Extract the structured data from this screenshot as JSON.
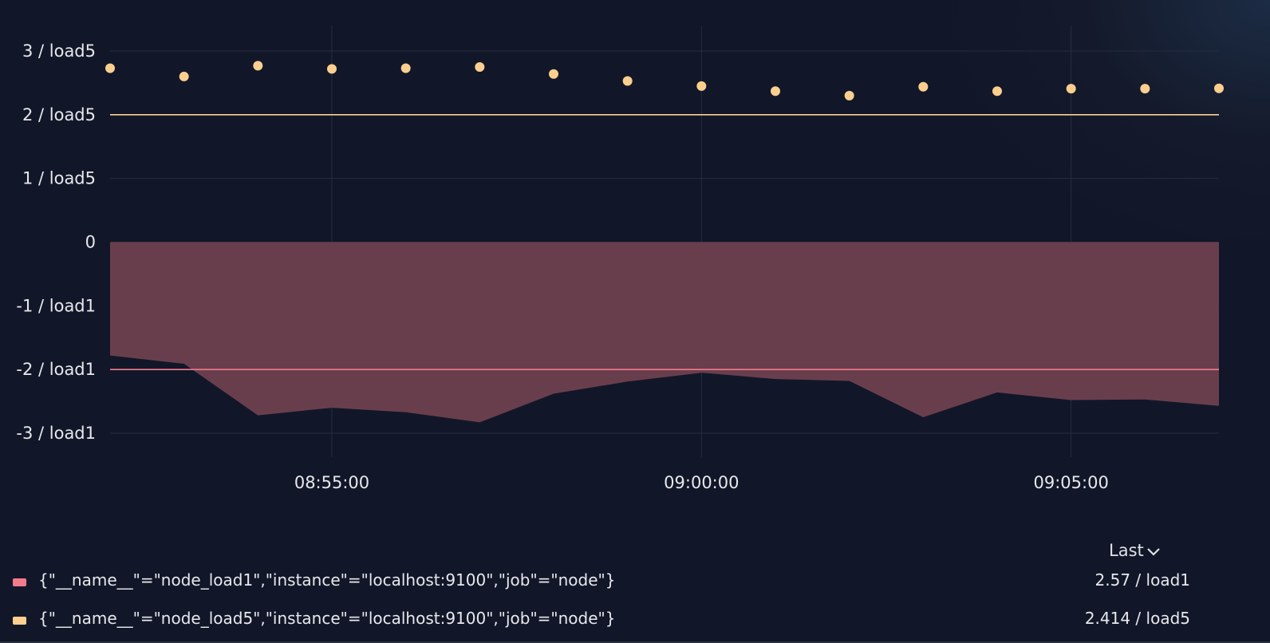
{
  "chart_data": {
    "type": "line",
    "title": "",
    "xlabel": "",
    "ylabel": "",
    "x_tick_labels": [
      "08:55:00",
      "09:00:00",
      "09:05:00"
    ],
    "y_tick_labels": [
      "3 / load5",
      "2 / load5",
      "1 / load5",
      "0",
      "-1 / load1",
      "-2 / load1",
      "-3 / load1"
    ],
    "ylim": [
      -3,
      3
    ],
    "grid": true,
    "legend_position": "bottom",
    "series": [
      {
        "name": "{\"__name__\"=\"node_load1\",\"instance\"=\"localhost:9100\",\"job\"=\"node\"}",
        "style": "area-negative",
        "color": "#f27a8c",
        "fill_color": "#6b3f4e",
        "threshold": 2,
        "x": [
          "08:52:00",
          "08:53:00",
          "08:54:00",
          "08:55:00",
          "08:56:00",
          "08:57:00",
          "08:58:00",
          "08:59:00",
          "09:00:00",
          "09:01:00",
          "09:02:00",
          "09:03:00",
          "09:04:00",
          "09:05:00",
          "09:06:00",
          "09:07:00"
        ],
        "values": [
          1.78,
          1.91,
          2.72,
          2.6,
          2.67,
          2.83,
          2.38,
          2.19,
          2.05,
          2.15,
          2.18,
          2.75,
          2.36,
          2.48,
          2.47,
          2.57
        ]
      },
      {
        "name": "{\"__name__\"=\"node_load5\",\"instance\"=\"localhost:9100\",\"job\"=\"node\"}",
        "style": "points",
        "color": "#fccf8f",
        "threshold": 2,
        "x": [
          "08:52:00",
          "08:53:00",
          "08:54:00",
          "08:55:00",
          "08:56:00",
          "08:57:00",
          "08:58:00",
          "08:59:00",
          "09:00:00",
          "09:01:00",
          "09:02:00",
          "09:03:00",
          "09:04:00",
          "09:05:00",
          "09:06:00",
          "09:07:00"
        ],
        "values": [
          2.73,
          2.6,
          2.77,
          2.72,
          2.73,
          2.75,
          2.64,
          2.53,
          2.45,
          2.37,
          2.3,
          2.44,
          2.37,
          2.41,
          2.41,
          2.414
        ]
      }
    ]
  },
  "legend": {
    "sort_label": "Last",
    "rows": [
      {
        "name": "{\"__name__\"=\"node_load1\",\"instance\"=\"localhost:9100\",\"job\"=\"node\"}",
        "value": "2.57 / load1",
        "color": "#f27a8c"
      },
      {
        "name": "{\"__name__\"=\"node_load5\",\"instance\"=\"localhost:9100\",\"job\"=\"node\"}",
        "value": "2.414 / load5",
        "color": "#fccf8f"
      }
    ]
  }
}
